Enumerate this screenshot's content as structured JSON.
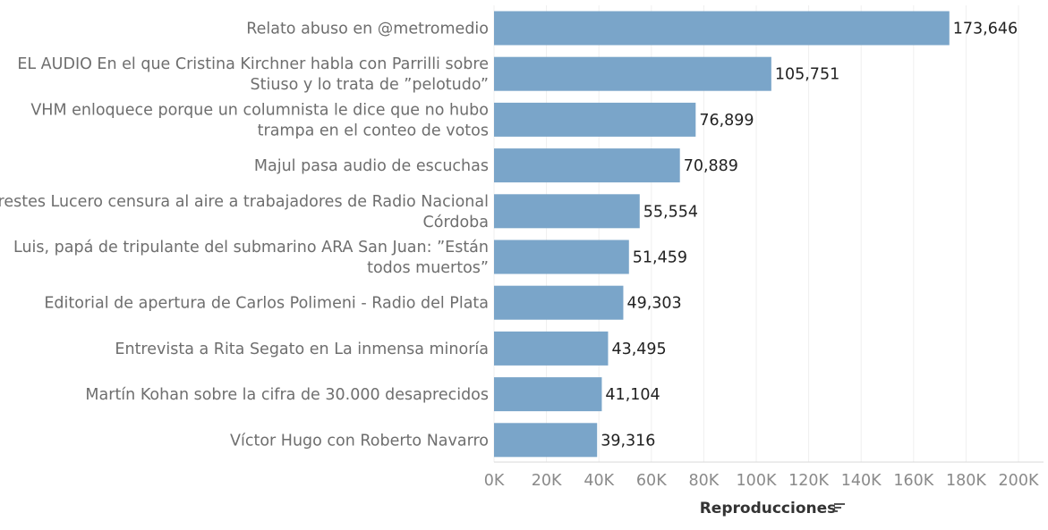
{
  "chart_data": {
    "type": "bar",
    "orientation": "horizontal",
    "categories": [
      [
        "Relato abuso en @metromedio"
      ],
      [
        "EL AUDIO En el que Cristina Kirchner habla con Parrilli sobre",
        "Stiuso y lo trata de ”pelotudo”"
      ],
      [
        "VHM enloquece porque un columnista le dice que no hubo",
        "trampa en el conteo de votos"
      ],
      [
        "Majul pasa audio de escuchas"
      ],
      [
        "Orestes Lucero censura al aire a trabajadores de Radio Nacional",
        "Córdoba"
      ],
      [
        "Luis, papá de tripulante del submarino ARA San Juan: ”Están",
        "todos muertos”"
      ],
      [
        "Editorial de apertura de Carlos Polimeni - Radio del Plata"
      ],
      [
        "Entrevista a Rita Segato en La inmensa minoría"
      ],
      [
        "Martín Kohan sobre la cifra de 30.000 desaprecidos"
      ],
      [
        "Víctor Hugo con Roberto Navarro"
      ]
    ],
    "values": [
      173646,
      105751,
      76899,
      70889,
      55554,
      51459,
      49303,
      43495,
      41104,
      39316
    ],
    "value_labels": [
      "173,646",
      "105,751",
      "76,899",
      "70,889",
      "55,554",
      "51,459",
      "49,303",
      "43,495",
      "41,104",
      "39,316"
    ],
    "xlabel": "Reproducciones",
    "xlim": [
      0,
      200000
    ],
    "x_ticks": [
      0,
      20000,
      40000,
      60000,
      80000,
      100000,
      120000,
      140000,
      160000,
      180000,
      200000
    ],
    "x_tick_labels": [
      "0K",
      "20K",
      "40K",
      "60K",
      "80K",
      "100K",
      "120K",
      "140K",
      "160K",
      "180K",
      "200K"
    ],
    "grid": true,
    "sorted": "descending",
    "colors": {
      "bar": "#7aa5c9",
      "category_text": "#6e6e6e",
      "value_text": "#222222"
    },
    "icons": {
      "axis_sort": "sort-descending-icon"
    }
  }
}
